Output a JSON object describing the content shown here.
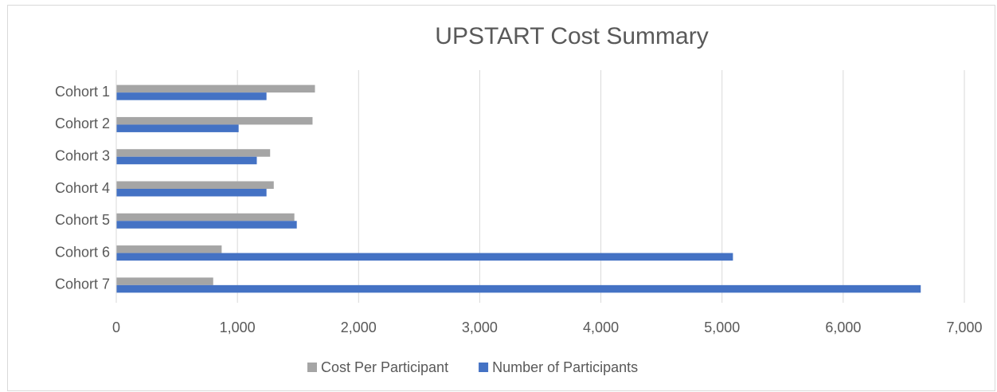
{
  "chart_data": {
    "type": "hbar",
    "title": "UPSTART Cost Summary",
    "categories": [
      "Cohort 1",
      "Cohort 2",
      "Cohort 3",
      "Cohort 4",
      "Cohort 5",
      "Cohort 6",
      "Cohort 7"
    ],
    "series": [
      {
        "name": "Cost Per Participant",
        "color": "#a5a5a5",
        "values": [
          1640,
          1620,
          1270,
          1300,
          1470,
          870,
          800
        ]
      },
      {
        "name": "Number of Participants",
        "color": "#4472c4",
        "values": [
          1240,
          1010,
          1160,
          1240,
          1490,
          5090,
          6640
        ]
      }
    ],
    "xlim": [
      0,
      7000
    ],
    "xticks": [
      0,
      {
        "value": 1000,
        "label": "1,000"
      },
      {
        "value": 2000,
        "label": "2,000"
      },
      {
        "value": 3000,
        "label": "3,000"
      },
      {
        "value": 4000,
        "label": "4,000"
      },
      {
        "value": 5000,
        "label": "5,000"
      },
      {
        "value": 6000,
        "label": "6,000"
      },
      {
        "value": 7000,
        "label": "7,000"
      }
    ],
    "grid": true,
    "legend": "bottom"
  }
}
